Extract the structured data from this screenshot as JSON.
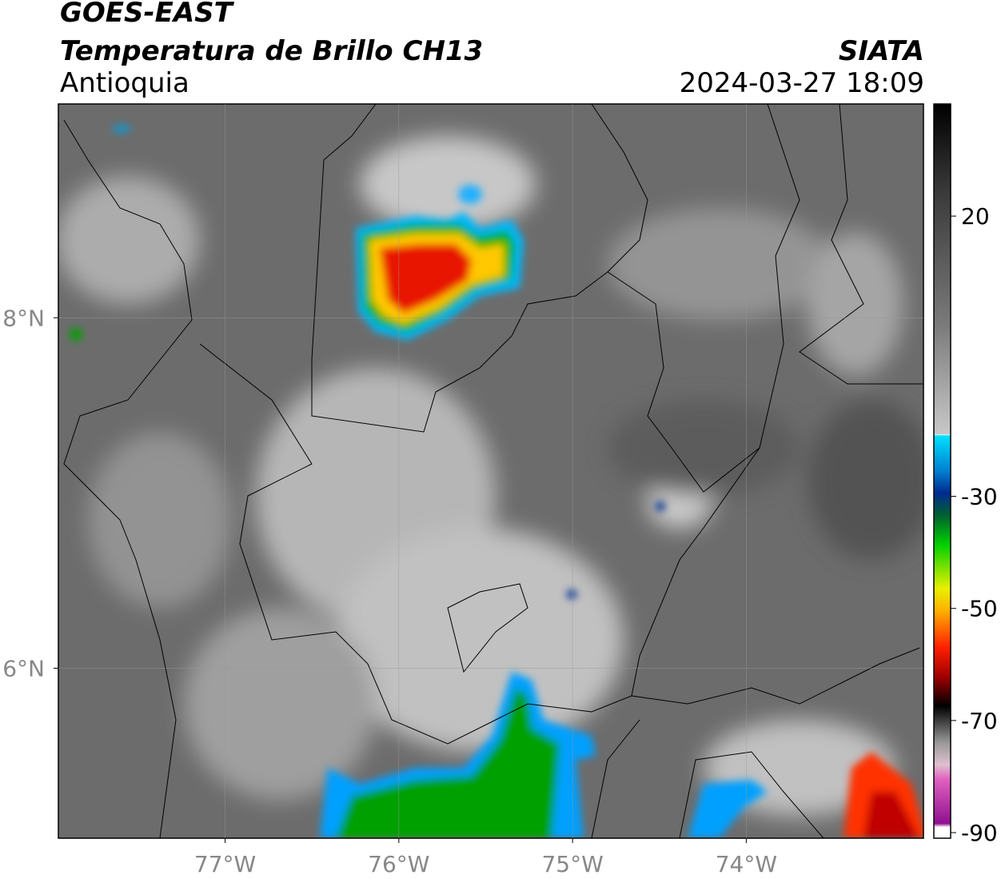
{
  "header": {
    "satellite": "GOES-EAST",
    "product": "Temperatura de Brillo CH13",
    "region": "Antioquia",
    "agency": "SIATA",
    "timestamp": "2024-03-27 18:09"
  },
  "map": {
    "xlim": [
      -77.96,
      -72.98
    ],
    "ylim": [
      5.03,
      9.22
    ],
    "xticks": [
      {
        "value": -77,
        "label": "77°W"
      },
      {
        "value": -76,
        "label": "76°W"
      },
      {
        "value": -75,
        "label": "75°W"
      },
      {
        "value": -74,
        "label": "74°W"
      }
    ],
    "yticks": [
      {
        "value": 8,
        "label": "8°N"
      },
      {
        "value": 6,
        "label": "6°N"
      }
    ],
    "grid": true
  },
  "colorbar": {
    "lim": [
      -91,
      40
    ],
    "ticks": [
      20,
      -30,
      -50,
      -70,
      -90
    ]
  }
}
